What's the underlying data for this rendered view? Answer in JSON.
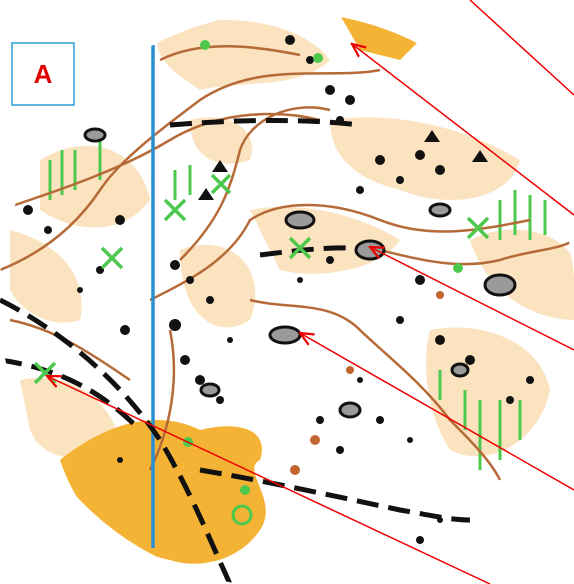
{
  "label": "A"
}
